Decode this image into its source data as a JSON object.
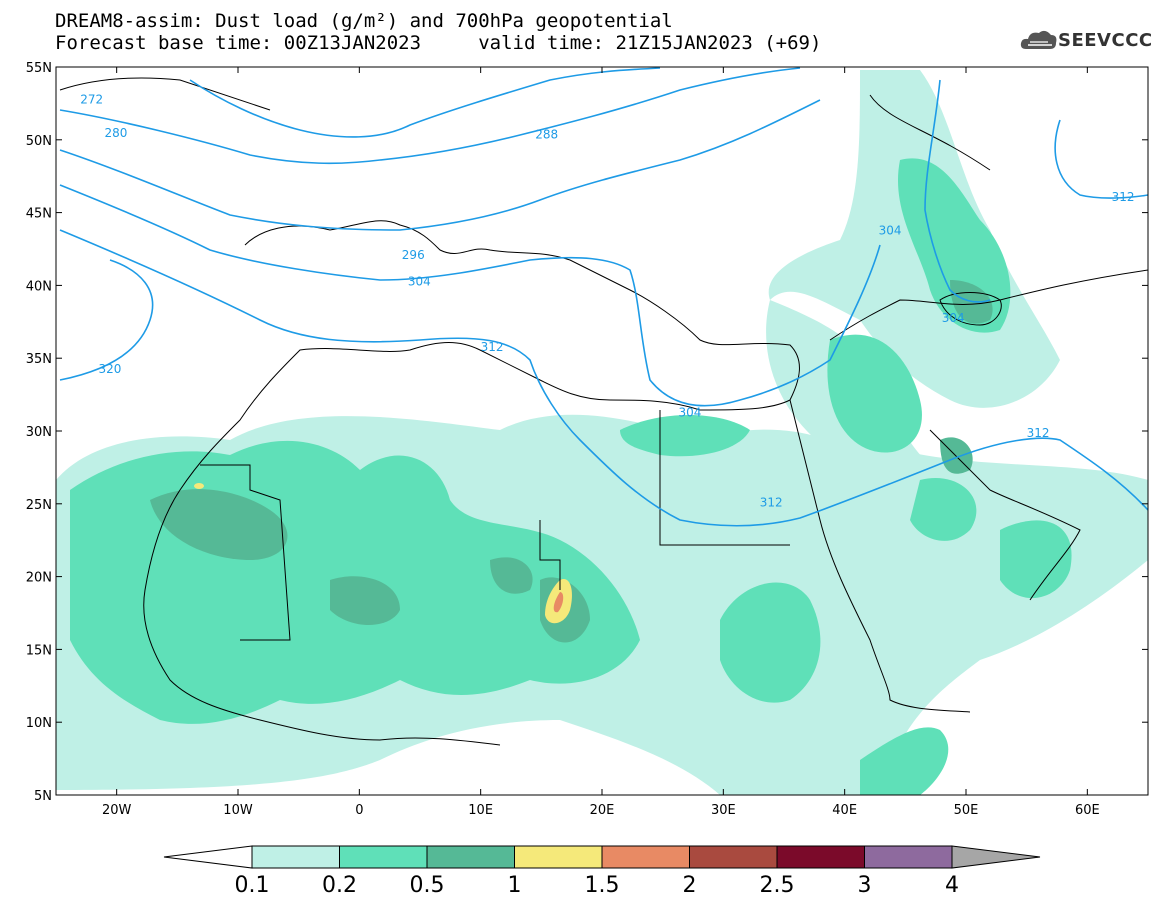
{
  "title": {
    "line1": "DREAM8-assim: Dust load (g/m²) and 700hPa geopotential",
    "line2": "Forecast base time: 00Z13JAN2023     valid time: 21Z15JAN2023 (+69)"
  },
  "logo": {
    "text": "SEEVCCC",
    "icon": "cloud-icon"
  },
  "map": {
    "lon_range": [
      -25,
      65
    ],
    "lat_range": [
      5,
      55
    ],
    "lat_ticks": [
      {
        "value": 55,
        "label": "55N"
      },
      {
        "value": 50,
        "label": "50N"
      },
      {
        "value": 45,
        "label": "45N"
      },
      {
        "value": 40,
        "label": "40N"
      },
      {
        "value": 35,
        "label": "35N"
      },
      {
        "value": 30,
        "label": "30N"
      },
      {
        "value": 25,
        "label": "25N"
      },
      {
        "value": 20,
        "label": "20N"
      },
      {
        "value": 15,
        "label": "15N"
      },
      {
        "value": 10,
        "label": "10N"
      },
      {
        "value": 5,
        "label": "5N"
      }
    ],
    "lon_ticks": [
      {
        "value": -20,
        "label": "20W"
      },
      {
        "value": -10,
        "label": "10W"
      },
      {
        "value": 0,
        "label": "0"
      },
      {
        "value": 10,
        "label": "10E"
      },
      {
        "value": 20,
        "label": "20E"
      },
      {
        "value": 30,
        "label": "30E"
      },
      {
        "value": 40,
        "label": "40E"
      },
      {
        "value": 50,
        "label": "50E"
      },
      {
        "value": 60,
        "label": "60E"
      }
    ],
    "contour_labels": [
      {
        "text": "272",
        "lon": -23,
        "lat": 52.5
      },
      {
        "text": "280",
        "lon": -21,
        "lat": 50.2
      },
      {
        "text": "288",
        "lon": 14.5,
        "lat": 50.1
      },
      {
        "text": "296",
        "lon": 3.5,
        "lat": 41.8
      },
      {
        "text": "304",
        "lon": 4.0,
        "lat": 40.0
      },
      {
        "text": "312",
        "lon": 10.0,
        "lat": 35.5
      },
      {
        "text": "320",
        "lon": -21.5,
        "lat": 34.0
      },
      {
        "text": "304",
        "lon": 26.3,
        "lat": 31.0
      },
      {
        "text": "312",
        "lon": 33.0,
        "lat": 24.8
      },
      {
        "text": "312",
        "lon": 55.0,
        "lat": 29.6
      },
      {
        "text": "304",
        "lon": 42.8,
        "lat": 43.5
      },
      {
        "text": "304",
        "lon": 48.0,
        "lat": 37.5
      },
      {
        "text": "312",
        "lon": 62.0,
        "lat": 45.8
      }
    ]
  },
  "colorbar": {
    "labels": [
      "0.1",
      "0.2",
      "0.5",
      "1",
      "1.5",
      "2",
      "2.5",
      "3",
      "4"
    ],
    "colors": [
      "#bff0e6",
      "#5fe0b8",
      "#55b996",
      "#f5e97a",
      "#e88a64",
      "#a94a3f",
      "#7b0a2a",
      "#8e6a9e"
    ],
    "low_color": "#ffffff",
    "high_color": "#a6a6a6"
  }
}
